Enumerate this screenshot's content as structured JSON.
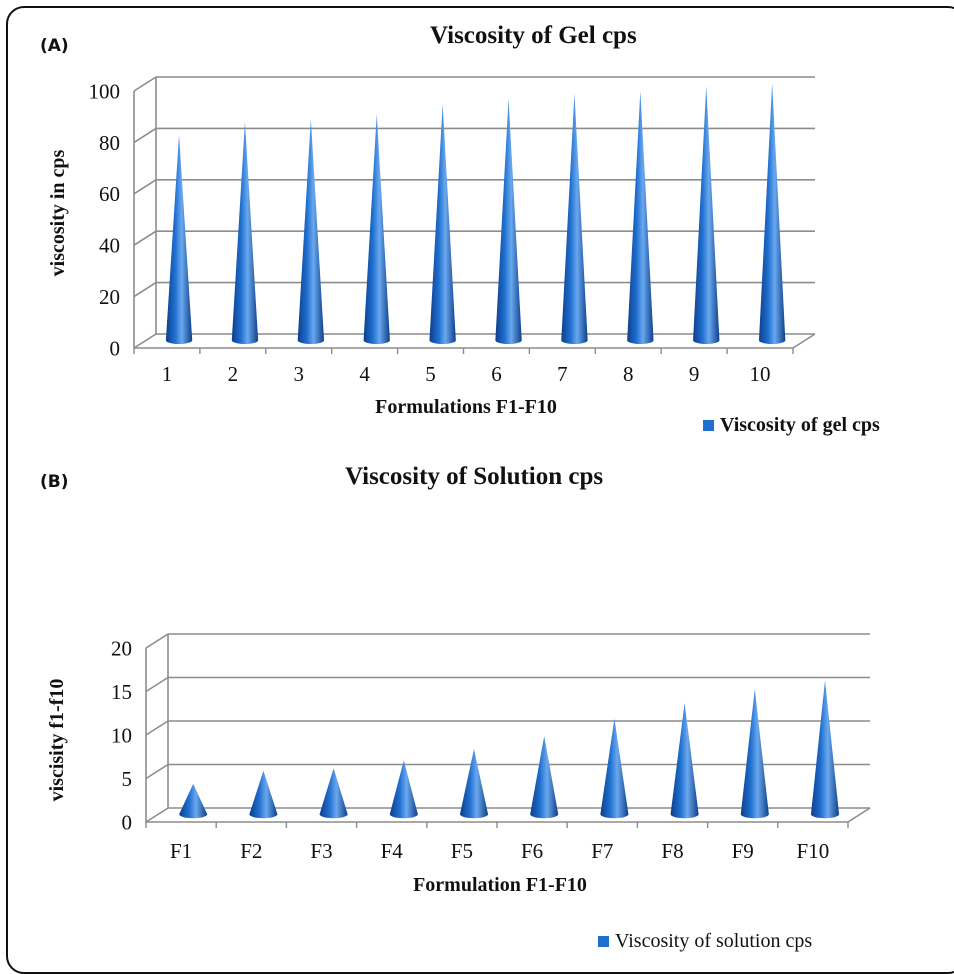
{
  "colors": {
    "cone": "#1f6fd0",
    "cone_light": "#6aa8ee",
    "cone_dark": "#0d3f8a",
    "grid": "#8c8c8c"
  },
  "charts": [
    {
      "panel_label": "(A)",
      "legend_label": "Viscosity of gel cps"
    },
    {
      "panel_label": "(B)",
      "legend_label": "Viscosity of solution cps"
    }
  ],
  "chart_data": [
    {
      "type": "bar",
      "shape": "3d-cone",
      "title": "Viscosity of Gel cps",
      "xlabel": "Formulations F1-F10",
      "ylabel": "viscosity in cps",
      "categories": [
        "1",
        "2",
        "3",
        "4",
        "5",
        "6",
        "7",
        "8",
        "9",
        "10"
      ],
      "series": [
        {
          "name": "Viscosity of gel cps",
          "values": [
            80,
            85,
            86,
            88,
            92,
            94,
            96,
            97,
            99,
            100
          ]
        }
      ],
      "ylim": [
        0,
        100
      ],
      "yticks": [
        0,
        20,
        40,
        60,
        80,
        100
      ],
      "grid": true,
      "legend_position": "bottom-right"
    },
    {
      "type": "bar",
      "shape": "3d-cone",
      "title": "Viscosity of Solution cps",
      "xlabel": "Formulation F1-F10",
      "ylabel": "viscisity f1-f10",
      "categories": [
        "F1",
        "F2",
        "F3",
        "F4",
        "F5",
        "F6",
        "F7",
        "F8",
        "F9",
        "F10"
      ],
      "series": [
        {
          "name": "Viscosity of solution cps",
          "values": [
            3.5,
            5,
            5.3,
            6.2,
            7.5,
            9,
            11,
            12.8,
            14.4,
            15.4
          ]
        }
      ],
      "ylim": [
        0,
        20
      ],
      "yticks": [
        0,
        5,
        10,
        15,
        20
      ],
      "grid": true,
      "legend_position": "bottom-right"
    }
  ]
}
